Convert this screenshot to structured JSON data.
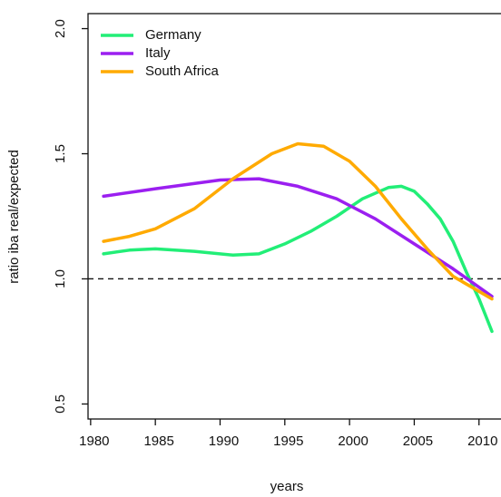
{
  "chart_data": {
    "type": "line",
    "xlabel": "years",
    "ylabel": "ratio iba real/expected",
    "xlim": [
      1979.8,
      2011.7
    ],
    "ylim": [
      0.44,
      2.06
    ],
    "xticks": [
      1980,
      1985,
      1990,
      1995,
      2000,
      2005,
      2010
    ],
    "yticks": [
      {
        "value": 0.5,
        "label": "0.5"
      },
      {
        "value": 1,
        "label": "1.0"
      },
      {
        "value": 1.5,
        "label": "1.5"
      },
      {
        "value": 2,
        "label": "2.0"
      }
    ],
    "reference_line": 1,
    "legend": "top-left",
    "series": [
      {
        "name": "Germany",
        "color": "#22ee77",
        "x": [
          1981,
          1983,
          1985,
          1988,
          1991,
          1993,
          1995,
          1997,
          1999,
          2001,
          2003,
          2004,
          2005,
          2006,
          2007,
          2008,
          2009,
          2010,
          2011
        ],
        "values": [
          1.1,
          1.115,
          1.12,
          1.11,
          1.095,
          1.1,
          1.14,
          1.19,
          1.25,
          1.32,
          1.365,
          1.37,
          1.35,
          1.3,
          1.24,
          1.15,
          1.03,
          0.92,
          0.79
        ]
      },
      {
        "name": "Italy",
        "color": "#9b1ff0",
        "x": [
          1981,
          1985,
          1990,
          1993,
          1996,
          1999,
          2002,
          2005,
          2008,
          2011
        ],
        "values": [
          1.33,
          1.36,
          1.395,
          1.4,
          1.37,
          1.32,
          1.24,
          1.14,
          1.04,
          0.93
        ]
      },
      {
        "name": "South Africa",
        "color": "#ffaa00",
        "x": [
          1981,
          1983,
          1985,
          1988,
          1991,
          1994,
          1996,
          1998,
          2000,
          2002,
          2004,
          2006,
          2008,
          2010,
          2011
        ],
        "values": [
          1.15,
          1.17,
          1.2,
          1.28,
          1.4,
          1.5,
          1.54,
          1.53,
          1.47,
          1.37,
          1.24,
          1.12,
          1.01,
          0.95,
          0.92
        ]
      }
    ]
  }
}
